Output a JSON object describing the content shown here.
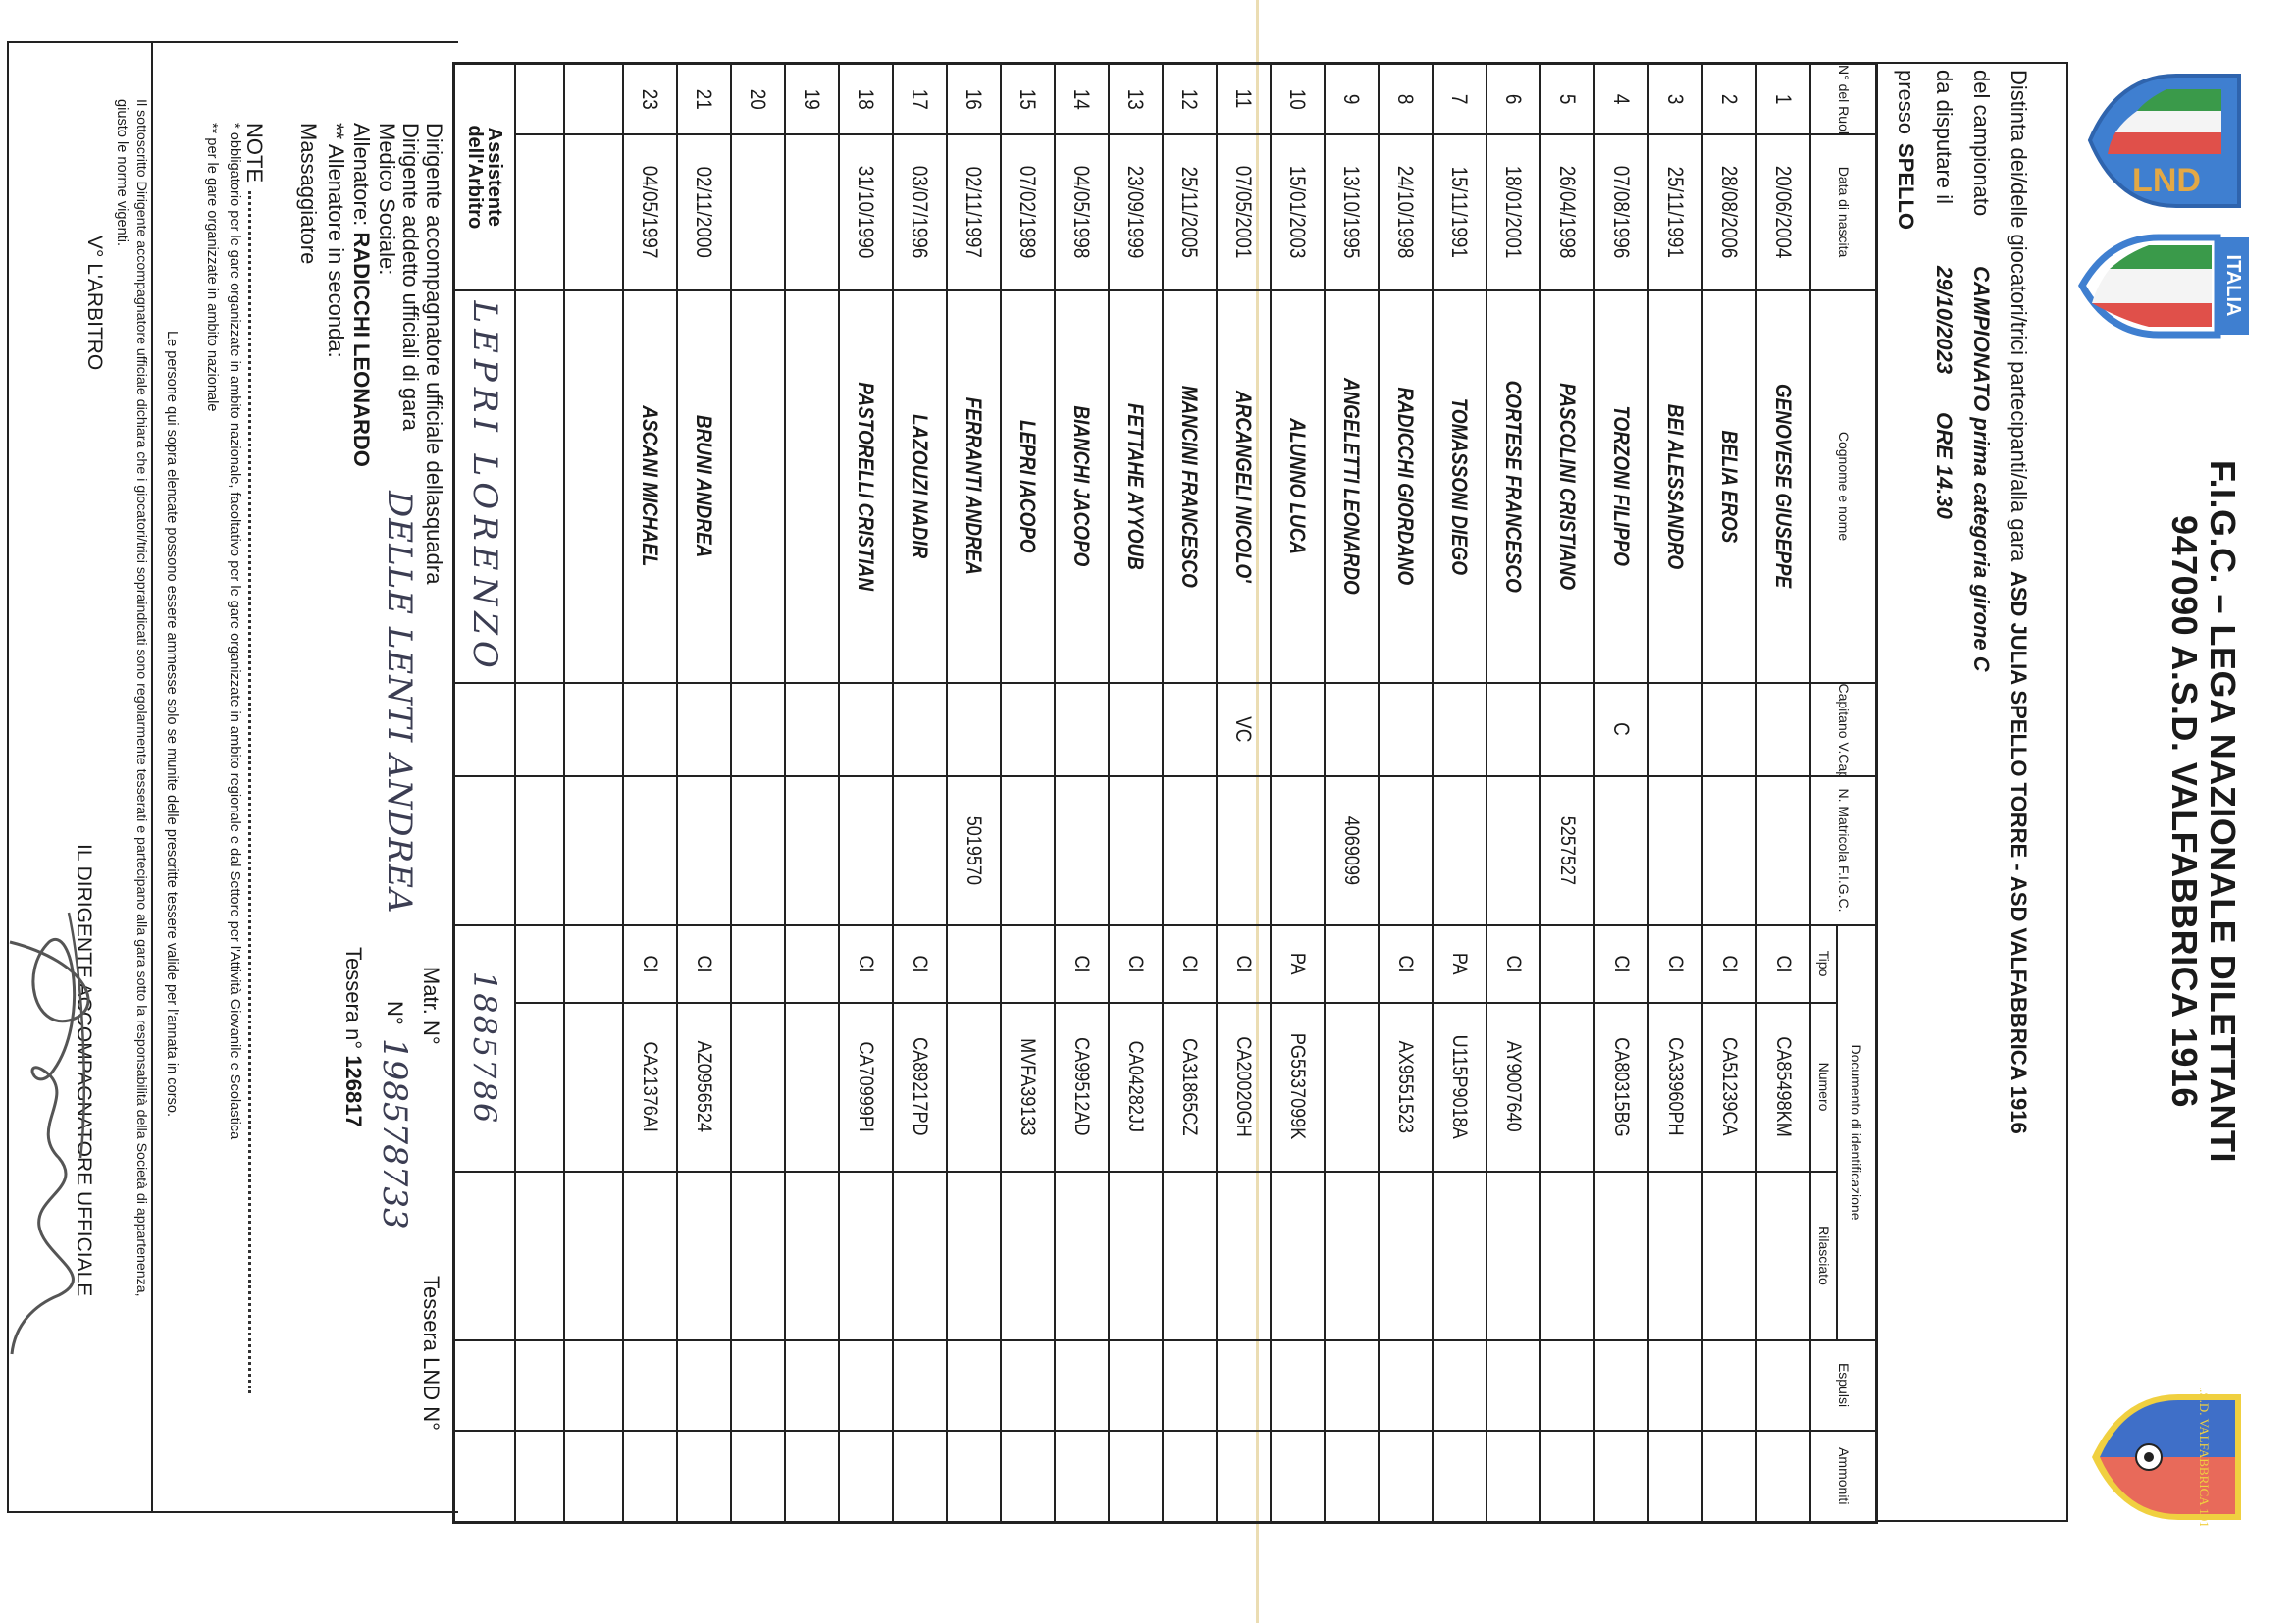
{
  "logos": {
    "lnd": {
      "text": "LND",
      "colors": {
        "blue": "#3f7fd0",
        "gold": "#e3a845",
        "green": "#3a9a4a",
        "red": "#e0504a"
      }
    },
    "italia": {
      "text": "ITALIA"
    },
    "valfabbrica": {
      "text": "A.S.D. VALFABBRICA 1916",
      "colors": {
        "blue": "#3f6fc8",
        "red": "#e86a5a",
        "gold": "#f0d040"
      }
    }
  },
  "title": {
    "line1": "F.I.G.C. – LEGA NAZIONALE DILETTANTI",
    "line2": "947090 A.S.D. VALFABBRICA 1916"
  },
  "header": {
    "distinta_label": "Distinta dei/delle giocatori/trici partecipanti/alla gara",
    "match": "ASD JULIA SPELLO TORRE  -  ASD VALFABBRICA 1916",
    "campionato_label": "del campionato",
    "campionato_value": "CAMPIONATO prima categoria girone C",
    "date_label": "da disputare il",
    "date_value": "29/10/2023",
    "time_value": "ORE 14.30",
    "venue_label": "presso",
    "venue_value": "SPELLO"
  },
  "table": {
    "columns": {
      "num": "N° del Ruolo",
      "dob": "Data di nascita",
      "name": "Cognome e nome",
      "cap": "Capitano V.Cap.",
      "matricola": "N. Matricola F.I.G.C.",
      "documento": "Documento di identificazione",
      "tipo": "Tipo",
      "numero": "Numero",
      "rilasciato": "Rilasciato",
      "espulsi": "Espulsi",
      "ammoniti": "Ammoniti"
    },
    "rows": [
      {
        "num": "1",
        "dob": "20/06/2004",
        "name": "GENOVESE GIUSEPPE",
        "cap": "",
        "matricola": "",
        "tipo": "CI",
        "numero": "CA85498KM"
      },
      {
        "num": "2",
        "dob": "28/08/2006",
        "name": "BELIA EROS",
        "cap": "",
        "matricola": "",
        "tipo": "CI",
        "numero": "CA51239CA"
      },
      {
        "num": "3",
        "dob": "25/11/1991",
        "name": "BEI ALESSANDRO",
        "cap": "",
        "matricola": "",
        "tipo": "CI",
        "numero": "CA33960PH"
      },
      {
        "num": "4",
        "dob": "07/08/1996",
        "name": "TORZONI FILIPPO",
        "cap": "C",
        "matricola": "",
        "tipo": "CI",
        "numero": "CA80315BG"
      },
      {
        "num": "5",
        "dob": "26/04/1998",
        "name": "PASCOLINI CRISTIANO",
        "cap": "",
        "matricola": "5257527",
        "tipo": "",
        "numero": ""
      },
      {
        "num": "6",
        "dob": "18/01/2001",
        "name": "CORTESE FRANCESCO",
        "cap": "",
        "matricola": "",
        "tipo": "CI",
        "numero": "AY9007640"
      },
      {
        "num": "7",
        "dob": "15/11/1991",
        "name": "TOMASSONI DIEGO",
        "cap": "",
        "matricola": "",
        "tipo": "PA",
        "numero": "U115P9018A"
      },
      {
        "num": "8",
        "dob": "24/10/1998",
        "name": "RADICCHI GIORDANO",
        "cap": "",
        "matricola": "",
        "tipo": "CI",
        "numero": "AX9551523"
      },
      {
        "num": "9",
        "dob": "13/10/1995",
        "name": "ANGELETTI LEONARDO",
        "cap": "",
        "matricola": "4069099",
        "tipo": "",
        "numero": ""
      },
      {
        "num": "10",
        "dob": "15/01/2003",
        "name": "ALUNNO LUCA",
        "cap": "",
        "matricola": "",
        "tipo": "PA",
        "numero": "PG5537099K"
      },
      {
        "num": "11",
        "dob": "07/05/2001",
        "name": "ARCANGELI NICOLO'",
        "cap": "VC",
        "matricola": "",
        "tipo": "CI",
        "numero": "CA20020GH"
      },
      {
        "num": "12",
        "dob": "25/11/2005",
        "name": "MANCINI FRANCESCO",
        "cap": "",
        "matricola": "",
        "tipo": "CI",
        "numero": "CA31865CZ"
      },
      {
        "num": "13",
        "dob": "23/09/1999",
        "name": "FETTAHE AYYOUB",
        "cap": "",
        "matricola": "",
        "tipo": "CI",
        "numero": "CA04282JJ"
      },
      {
        "num": "14",
        "dob": "04/05/1998",
        "name": "BIANCHI JACOPO",
        "cap": "",
        "matricola": "",
        "tipo": "CI",
        "numero": "CA99512AD"
      },
      {
        "num": "15",
        "dob": "07/02/1989",
        "name": "LEPRI IACOPO",
        "cap": "",
        "matricola": "",
        "tipo": "",
        "numero": "MVFA39133"
      },
      {
        "num": "16",
        "dob": "02/11/1997",
        "name": "FERRANTI ANDREA",
        "cap": "",
        "matricola": "5019570",
        "tipo": "",
        "numero": ""
      },
      {
        "num": "17",
        "dob": "03/07/1996",
        "name": "LAZOUZI NADIR",
        "cap": "",
        "matricola": "",
        "tipo": "CI",
        "numero": "CA89217PD"
      },
      {
        "num": "18",
        "dob": "31/10/1990",
        "name": "PASTORELLI CRISTIAN",
        "cap": "",
        "matricola": "",
        "tipo": "CI",
        "numero": "CA70999PI"
      },
      {
        "num": "19",
        "dob": "",
        "name": "",
        "cap": "",
        "matricola": "",
        "tipo": "",
        "numero": ""
      },
      {
        "num": "20",
        "dob": "",
        "name": "",
        "cap": "",
        "matricola": "",
        "tipo": "",
        "numero": ""
      },
      {
        "num": "21",
        "dob": "02/11/2000",
        "name": "BRUNI ANDREA",
        "cap": "",
        "matricola": "",
        "tipo": "CI",
        "numero": "AZ0956524"
      },
      {
        "num": "23",
        "dob": "04/05/1997",
        "name": "ASCANI MICHAEL",
        "cap": "",
        "matricola": "",
        "tipo": "CI",
        "numero": "CA21376AI"
      }
    ],
    "assistant": {
      "label": "Assistente dell'Arbitro",
      "name_handwritten": "LEPRI LORENZO",
      "matricola_handwritten": "1885786"
    }
  },
  "staff": {
    "dirigente_accompagnatore": "Dirigente accompagnatore ufficiale dellasquadra",
    "dirigente_addetto": "Dirigente addetto ufficiali di gara",
    "dirigente_addetto_handwritten": "DELLE LENTI ANDREA",
    "medico": "Medico Sociale:",
    "allenatore_label": "Allenatore:",
    "allenatore_value": "RADICCHI LEONARDO",
    "allenatore_seconda": "** Allenatore in seconda:",
    "massaggiatore": "Massaggiatore",
    "matr_label": "Matr.  N°",
    "n_label": "N°",
    "n_handwritten": "198578733",
    "tessera_lnd_label": "Tessera LND N°",
    "tessera_label": "Tessera n°",
    "tessera_value": "126817"
  },
  "notes": {
    "label": "NOTE",
    "note1": "* obbligatorio per le gare organizzate in ambito nazionale, facoltativo per le gare organizzate in ambito regionale e dal Settore per l'Attività Giovanile e Scolastica",
    "note2": "** per le gare organizzate in ambito nazionale",
    "persone": "Le persone qui sopra elencate possono essere ammesse solo se munite delle prescritte tessere valide per l'annata in corso."
  },
  "declaration": {
    "line1": "Il sottoscritto Dirigente accompagnatore ufficiale dichiara che i giocatori/trici sopraindicati sono regolarmente tesserati e partecipano alla gara sotto la responsabilità della Società di appartenenza,",
    "line2": "giusto le norme vigenti.",
    "arbitro": "V° L'ARBITRO",
    "dirigente": "IL DIRIGENTE ACCOMPAGNATORE UFFICIALE"
  }
}
